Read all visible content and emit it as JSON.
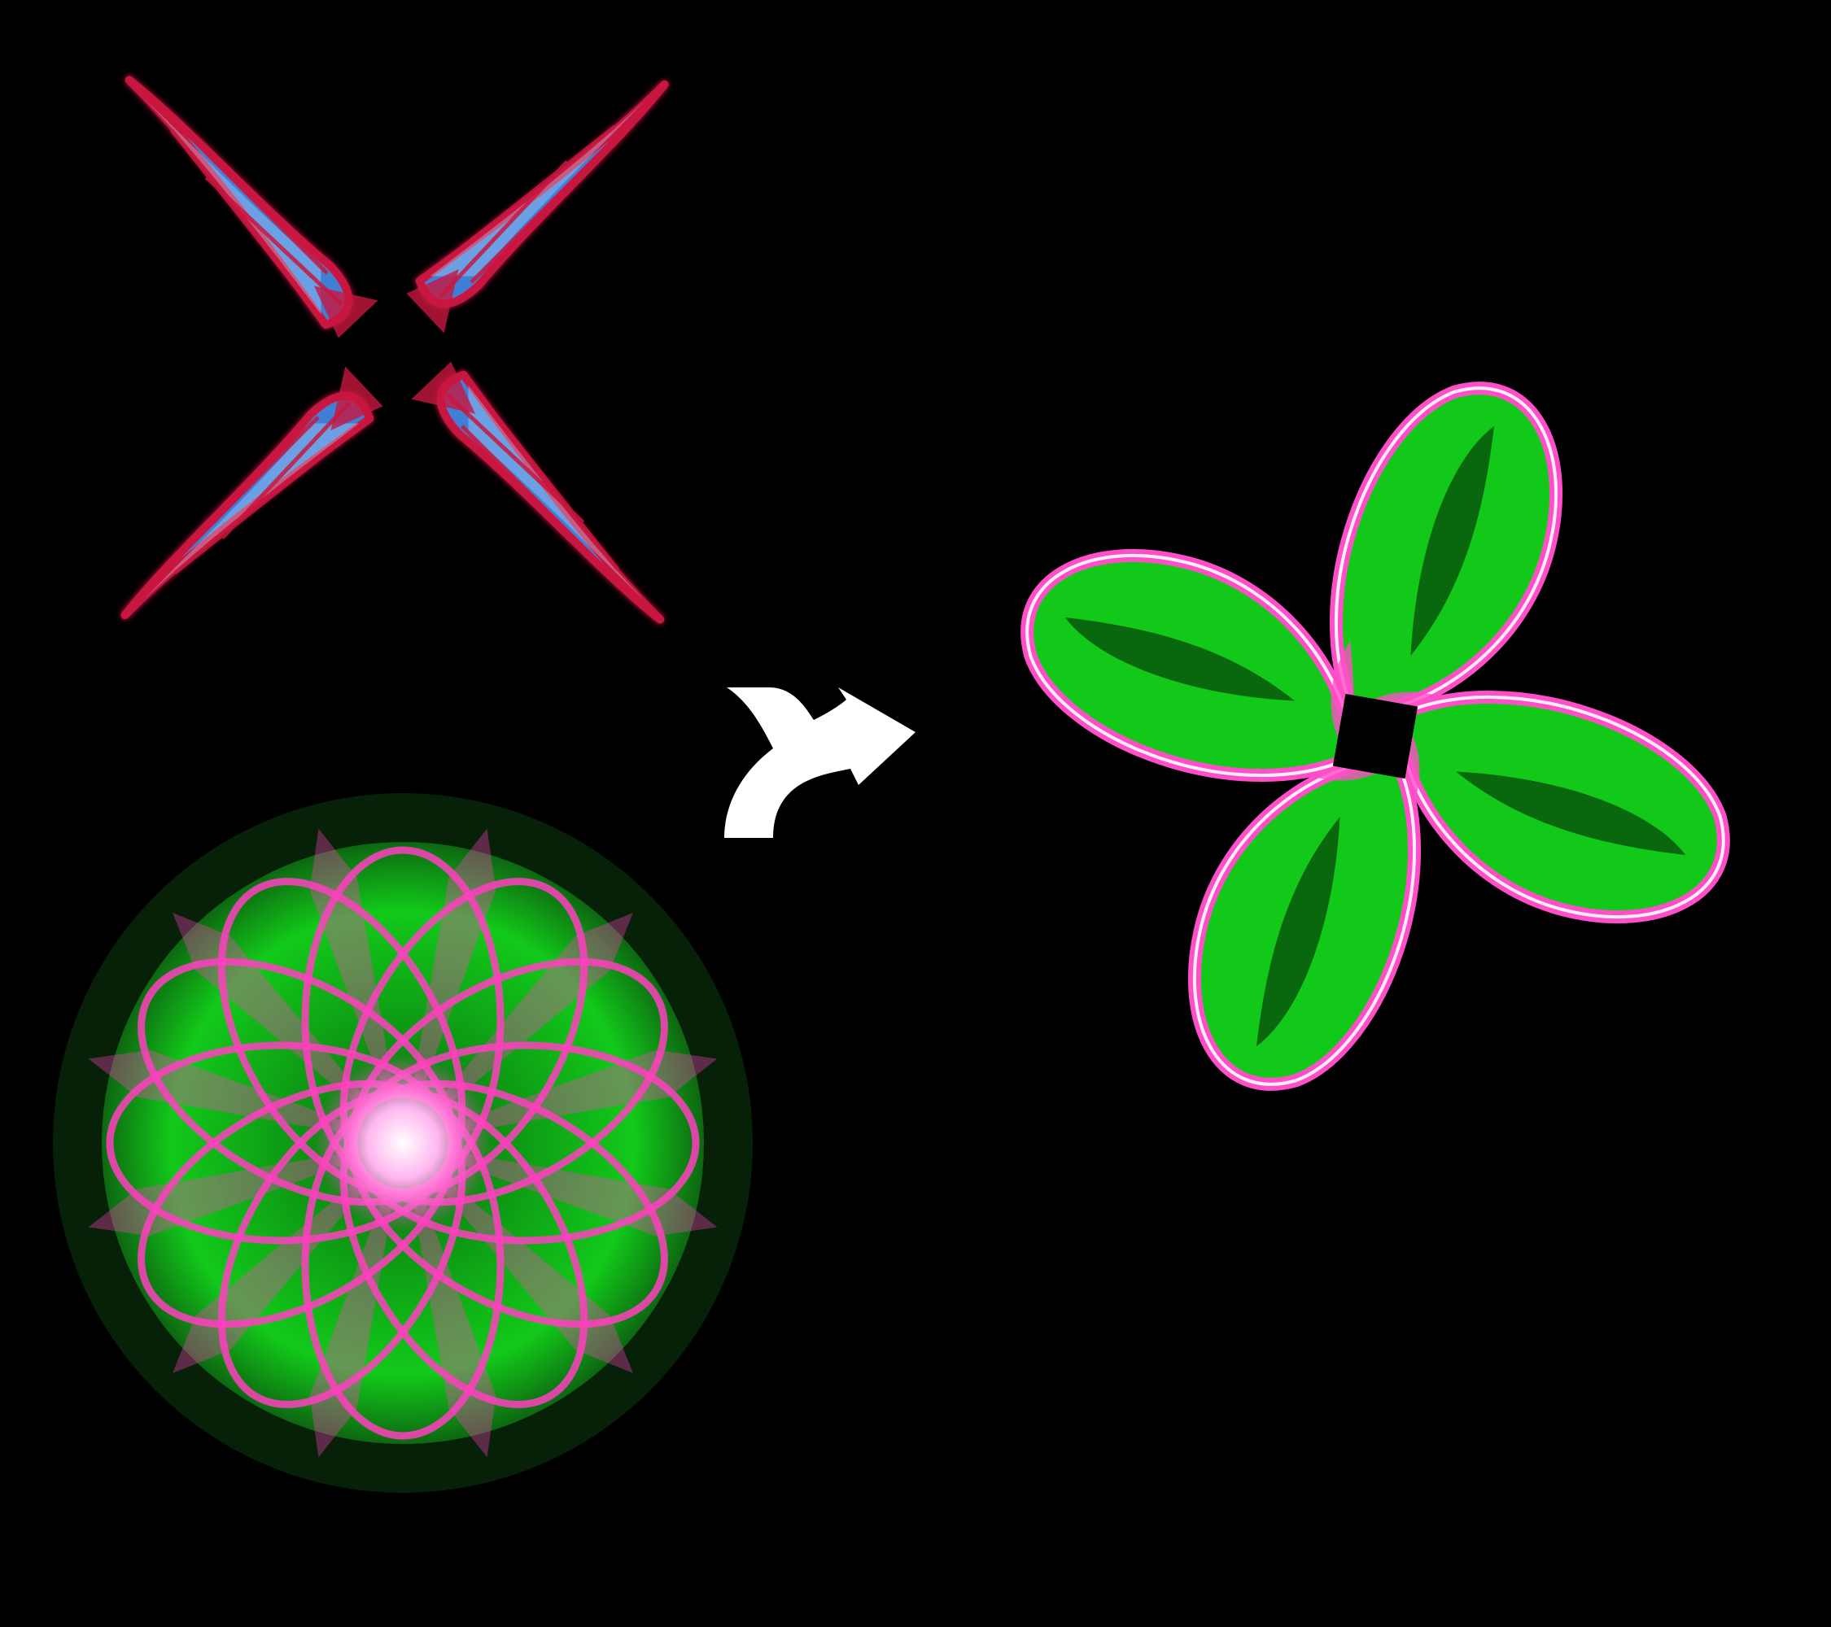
{
  "canvas": {
    "background": "#000000"
  },
  "figures": [
    {
      "name": "red-blue-pinwheel-attractor",
      "role": "input",
      "colors": {
        "edge": "#c8163f",
        "fill": "#3f7fd6",
        "highlight": "#bfe0ff"
      },
      "symmetry": 4
    },
    {
      "name": "green-pink-rosette-attractor",
      "role": "input",
      "colors": {
        "fill": "#11c41b",
        "edge": "#ff3fc0",
        "highlight": "#ffffff"
      },
      "symmetry": 12
    },
    {
      "name": "green-pink-pinwheel-attractor",
      "role": "output",
      "colors": {
        "fill": "#12c91a",
        "edge": "#ff4fc8",
        "highlight": "#ffffff"
      },
      "symmetry": 4
    }
  ],
  "connector": {
    "icon": "merge-arrow-icon",
    "color": "#ffffff"
  }
}
